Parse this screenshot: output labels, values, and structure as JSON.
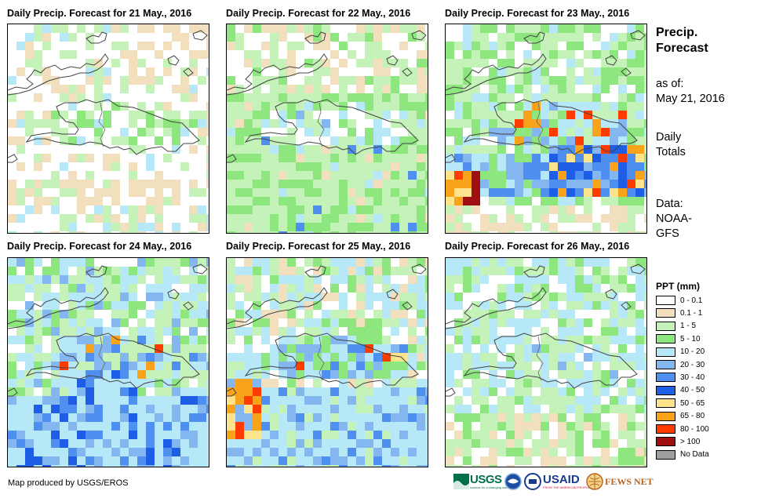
{
  "panels": [
    {
      "title": "Daily Precip. Forecast for 21 May., 2016",
      "seed": 11,
      "profile": "dry"
    },
    {
      "title": "Daily Precip. Forecast for 22 May., 2016",
      "seed": 23,
      "profile": "green"
    },
    {
      "title": "Daily Precip. Forecast for 23 May., 2016",
      "seed": 37,
      "profile": "heavy"
    },
    {
      "title": "Daily Precip. Forecast for 24 May., 2016",
      "seed": 41,
      "profile": "wet"
    },
    {
      "title": "Daily Precip. Forecast for 25 May., 2016",
      "seed": 53,
      "profile": "wet2"
    },
    {
      "title": "Daily Precip. Forecast for 26 May., 2016",
      "seed": 67,
      "profile": "moderate"
    }
  ],
  "side": {
    "heading_line1": "Precip.",
    "heading_line2": "Forecast",
    "asof_line1": "as of:",
    "asof_line2": "May 21, 2016",
    "daily_line1": "Daily",
    "daily_line2": "Totals",
    "data_line1": "Data:",
    "data_line2": "NOAA-",
    "data_line3": "GFS"
  },
  "legend": {
    "title": "PPT (mm)",
    "items": [
      {
        "label": "0 - 0.1",
        "color": "#ffffff"
      },
      {
        "label": "0.1 - 1",
        "color": "#f2dfbd"
      },
      {
        "label": "1 - 5",
        "color": "#c4f2b8"
      },
      {
        "label": "5 - 10",
        "color": "#8ee67e"
      },
      {
        "label": "10 - 20",
        "color": "#b7e8f7"
      },
      {
        "label": "20 - 30",
        "color": "#84b7f0"
      },
      {
        "label": "30 - 40",
        "color": "#4f8ff0"
      },
      {
        "label": "40 - 50",
        "color": "#1e5ee6"
      },
      {
        "label": "50 - 65",
        "color": "#fde38c"
      },
      {
        "label": "65 - 80",
        "color": "#f8a319"
      },
      {
        "label": "80 - 100",
        "color": "#ff3c00"
      },
      {
        "label": "> 100",
        "color": "#a00f0f"
      },
      {
        "label": "No Data",
        "color": "#9e9e9e"
      }
    ]
  },
  "credit": "Map produced by USGS/EROS",
  "logos": {
    "usgs": "USGS",
    "usgs_tagline": "science for a changing world",
    "usaid": "USAID",
    "usaid_tagline": "FROM THE AMERICAN PEOPLE",
    "fewsnet": "FEWS NET"
  }
}
